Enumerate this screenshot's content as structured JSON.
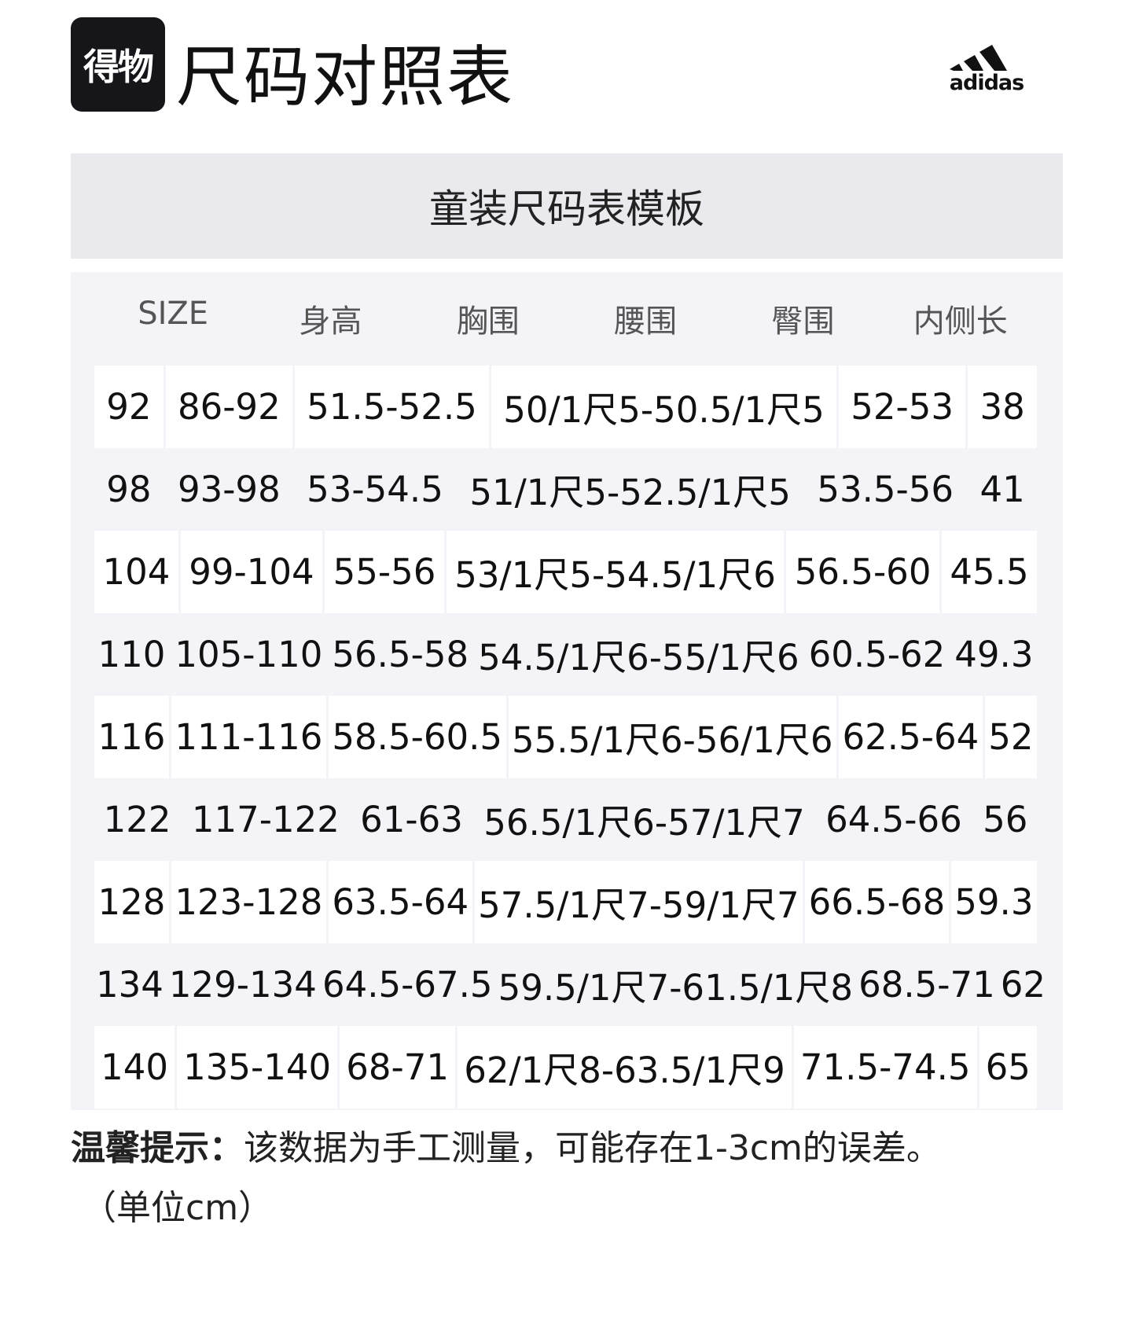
{
  "header": {
    "app_logo_text": "得物",
    "title": "尺码对照表",
    "brand_logo_text": "adidas"
  },
  "table": {
    "caption": "童装尺码表模板",
    "columns": [
      "SIZE",
      "身高",
      "胸围",
      "腰围",
      "臀围",
      "内侧长"
    ],
    "rows": [
      [
        "92",
        "86-92",
        "51.5-52.5",
        "50/1尺5-50.5/1尺5",
        "52-53",
        "38"
      ],
      [
        "98",
        "93-98",
        "53-54.5",
        "51/1尺5-52.5/1尺5",
        "53.5-56",
        "41"
      ],
      [
        "104",
        "99-104",
        "55-56",
        "53/1尺5-54.5/1尺6",
        "56.5-60",
        "45.5"
      ],
      [
        "110",
        "105-110",
        "56.5-58",
        "54.5/1尺6-55/1尺6",
        "60.5-62",
        "49.3"
      ],
      [
        "116",
        "111-116",
        "58.5-60.5",
        "55.5/1尺6-56/1尺6",
        "62.5-64",
        "52"
      ],
      [
        "122",
        "117-122",
        "61-63",
        "56.5/1尺6-57/1尺7",
        "64.5-66",
        "56"
      ],
      [
        "128",
        "123-128",
        "63.5-64",
        "57.5/1尺7-59/1尺7",
        "66.5-68",
        "59.3"
      ],
      [
        "134",
        "129-134",
        "64.5-67.5",
        "59.5/1尺7-61.5/1尺8",
        "68.5-71",
        "62"
      ],
      [
        "140",
        "135-140",
        "68-71",
        "62/1尺8-63.5/1尺9",
        "71.5-74.5",
        "65"
      ]
    ]
  },
  "footer": {
    "tip_label": "温馨提示：",
    "tip_text": "该数据为手工测量，可能存在1-3cm的误差。",
    "unit_note": "（单位cm）"
  }
}
